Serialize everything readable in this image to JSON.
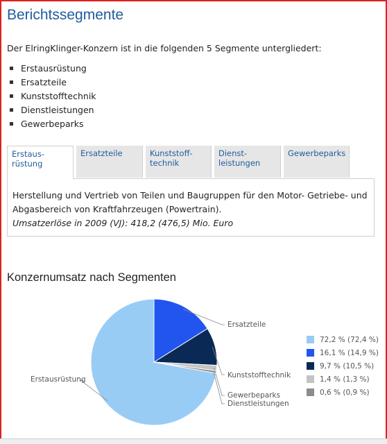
{
  "page": {
    "title": "Berichtssegmente"
  },
  "intro": "Der ElringKlinger-Konzern ist in die folgenden 5 Segmente untergliedert:",
  "segments": [
    "Erstausrüstung",
    "Ersatzteile",
    "Kunststofftechnik",
    "Dienstleistungen",
    "Gewerbeparks"
  ],
  "tabs": [
    {
      "label": "Erstaus-\nrüstung",
      "active": true
    },
    {
      "label": "Ersatzteile",
      "active": false
    },
    {
      "label": "Kunststoff-\ntechnik",
      "active": false
    },
    {
      "label": "Dienst-\nleistungen",
      "active": false
    },
    {
      "label": "Gewerbeparks",
      "active": false
    }
  ],
  "tab_panel": {
    "description": "Herstellung und Vertrieb von Teilen und Baugruppen für den Motor- Getriebe- und Abgasbereich von Kraftfahrzeugen (Powertrain).",
    "revenue": "Umsatzerlöse in 2009 (VJ): 418,2 (476,5) Mio. Euro"
  },
  "chart_heading": "Konzernumsatz nach Segmenten",
  "chart_data": {
    "type": "pie",
    "title": "Konzernumsatz nach Segmenten",
    "slices": [
      {
        "label": "Erstausrüstung",
        "value": 72.2,
        "previous": 72.4,
        "legend": "72,2 % (72,4 %)",
        "color": "#99ccf5"
      },
      {
        "label": "Ersatzteile",
        "value": 16.1,
        "previous": 14.9,
        "legend": "16,1 % (14,9 %)",
        "color": "#2255ee"
      },
      {
        "label": "Kunststofftechnik",
        "value": 9.7,
        "previous": 10.5,
        "legend": "9,7 % (10,5 %)",
        "color": "#0a2a55"
      },
      {
        "label": "Gewerbeparks",
        "value": 1.4,
        "previous": 1.3,
        "legend": "1,4 % (1,3 %)",
        "color": "#c4c4c4"
      },
      {
        "label": "Dienstleistungen",
        "value": 0.6,
        "previous": 0.9,
        "legend": "0,6 % (0,9 %)",
        "color": "#8c8c8c"
      }
    ],
    "legend_placement": "right"
  }
}
